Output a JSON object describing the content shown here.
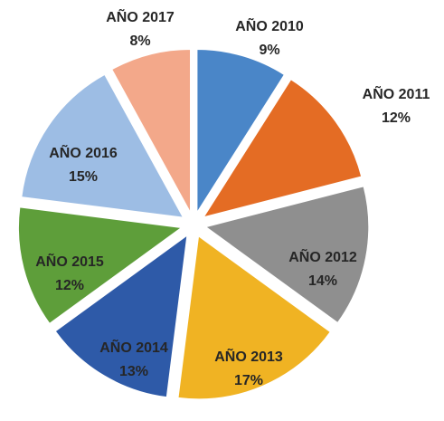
{
  "chart_data": {
    "type": "pie",
    "categories": [
      "AÑO 2010",
      "AÑO 2011",
      "AÑO 2012",
      "AÑO 2013",
      "AÑO 2014",
      "AÑO 2015",
      "AÑO 2016",
      "AÑO 2017"
    ],
    "values": [
      9,
      12,
      14,
      17,
      13,
      12,
      15,
      8
    ],
    "value_labels": [
      "9%",
      "12%",
      "14%",
      "17%",
      "13%",
      "12%",
      "15%",
      "8%"
    ],
    "colors": [
      "#4a86c8",
      "#e46c24",
      "#8f8f8f",
      "#f0b323",
      "#2e5aa8",
      "#5e9e3a",
      "#9dbde4",
      "#f3a88a"
    ]
  }
}
